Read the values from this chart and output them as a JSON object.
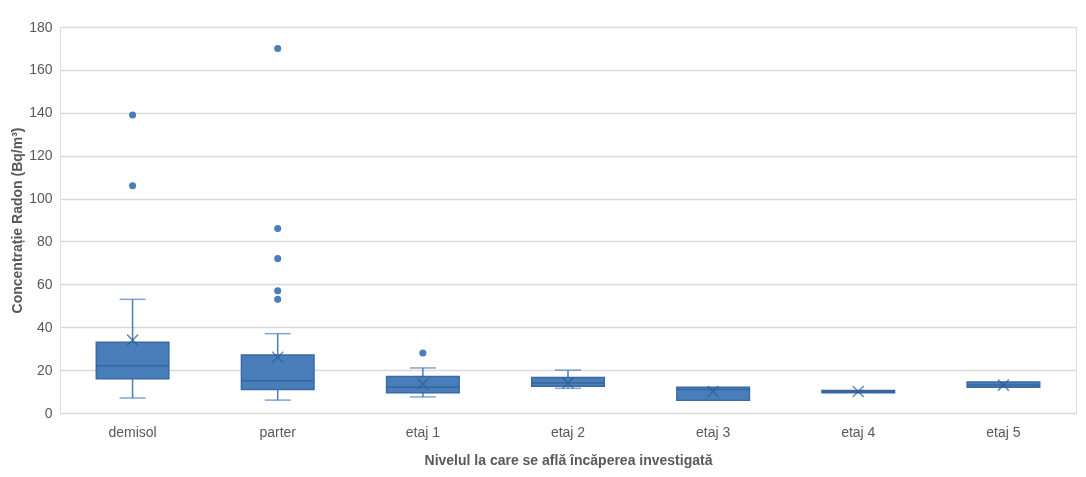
{
  "chart_data": {
    "type": "box",
    "xlabel": "Nivelul la care se află încăperea investigată",
    "ylabel": "Concentrație Radon (Bq/m³)",
    "categories": [
      "demisol",
      "parter",
      "etaj 1",
      "etaj 2",
      "etaj 3",
      "etaj 4",
      "etaj 5"
    ],
    "color": "#4a7ebb",
    "boxes": [
      {
        "low": 7,
        "q1": 16,
        "median": 22,
        "q3": 33,
        "high": 53,
        "mean": 34,
        "outliers": [
          106,
          139
        ]
      },
      {
        "low": 6,
        "q1": 11,
        "median": 15,
        "q3": 27,
        "high": 37,
        "mean": 26,
        "outliers": [
          53,
          57,
          72,
          86,
          170
        ]
      },
      {
        "low": 7.5,
        "q1": 9.5,
        "median": 12,
        "q3": 17,
        "high": 21,
        "mean": 13.5,
        "outliers": [
          28
        ]
      },
      {
        "low": 11.5,
        "q1": 12.5,
        "median": 14,
        "q3": 16.5,
        "high": 20,
        "mean": 14
      },
      {
        "low": 6,
        "q1": 6,
        "median": 11,
        "q3": 12,
        "high": 12,
        "mean": 10
      },
      {
        "low": 9.5,
        "q1": 9.5,
        "median": 10,
        "q3": 10.5,
        "high": 10.5,
        "mean": 10
      },
      {
        "low": 12,
        "q1": 12,
        "median": 13,
        "q3": 14.5,
        "high": 14.5,
        "mean": 13
      }
    ],
    "ylim": [
      0,
      180
    ],
    "yticks": [
      0,
      20,
      40,
      60,
      80,
      100,
      120,
      140,
      160,
      180
    ],
    "grid": "y"
  }
}
